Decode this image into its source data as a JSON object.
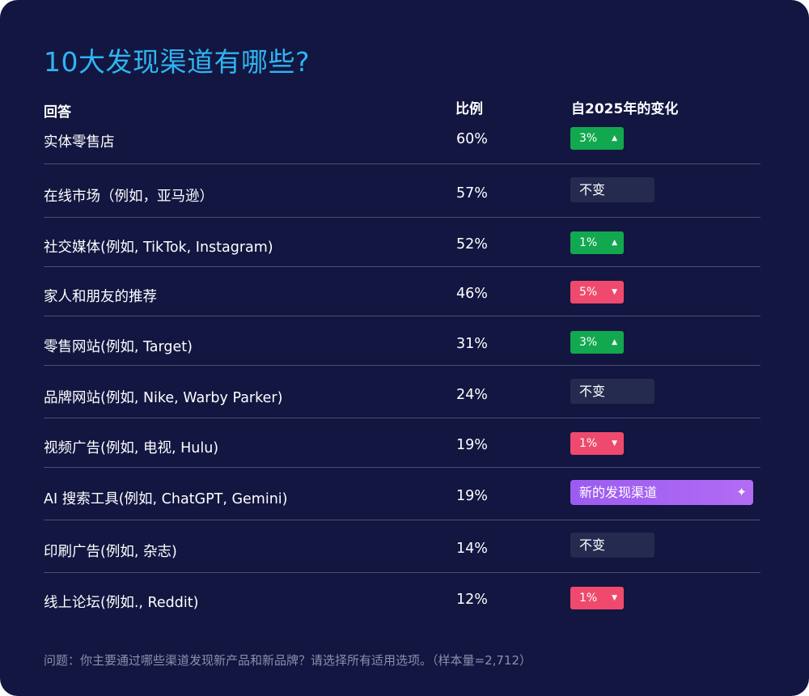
{
  "title": "10大发现渠道有哪些?",
  "headers": {
    "answer": "回答",
    "ratio": "比例",
    "change": "自2025年的变化"
  },
  "colors": {
    "background": "#121640",
    "title": "#2fb4f2",
    "up": "#12a84f",
    "down": "#ef4a6d",
    "flat": "#252a4f",
    "new": "#a463f2"
  },
  "footnote": "问题：你主要通过哪些渠道发现新产品和新品牌？请选择所有适用选项。（样本量=2,712）",
  "chart_data": {
    "type": "table",
    "title": "10大发现渠道有哪些?",
    "columns": [
      "回答",
      "比例",
      "自2025年的变化"
    ],
    "rows": [
      {
        "label": "实体零售店",
        "value": "60%",
        "pct": 60,
        "change": "3%",
        "trend": "up",
        "icon": "triangle-up-icon"
      },
      {
        "label": "在线市场（例如，亚马逊）",
        "value": "57%",
        "pct": 57,
        "change": "不变",
        "trend": "flat",
        "icon": ""
      },
      {
        "label": "社交媒体(例如, TikTok, Instagram)",
        "value": "52%",
        "pct": 52,
        "change": "1%",
        "trend": "up",
        "icon": "triangle-up-icon"
      },
      {
        "label": "家人和朋友的推荐",
        "value": "46%",
        "pct": 46,
        "change": "5%",
        "trend": "down",
        "icon": "triangle-down-icon"
      },
      {
        "label": "零售网站(例如, Target)",
        "value": "31%",
        "pct": 31,
        "change": "3%",
        "trend": "up",
        "icon": "triangle-up-icon"
      },
      {
        "label": "品牌网站(例如, Nike, Warby Parker)",
        "value": "24%",
        "pct": 24,
        "change": "不变",
        "trend": "flat",
        "icon": ""
      },
      {
        "label": "视频广告(例如, 电视, Hulu)",
        "value": "19%",
        "pct": 19,
        "change": "1%",
        "trend": "down",
        "icon": "triangle-down-icon"
      },
      {
        "label": "AI 搜索工具(例如, ChatGPT, Gemini)",
        "value": "19%",
        "pct": 19,
        "change": "新的发现渠道",
        "trend": "new",
        "icon": "sparkle-icon"
      },
      {
        "label": "印刷广告(例如, 杂志)",
        "value": "14%",
        "pct": 14,
        "change": "不变",
        "trend": "flat",
        "icon": ""
      },
      {
        "label": "线上论坛(例如., Reddit)",
        "value": "12%",
        "pct": 12,
        "change": "1%",
        "trend": "down",
        "icon": "triangle-down-icon"
      }
    ]
  }
}
